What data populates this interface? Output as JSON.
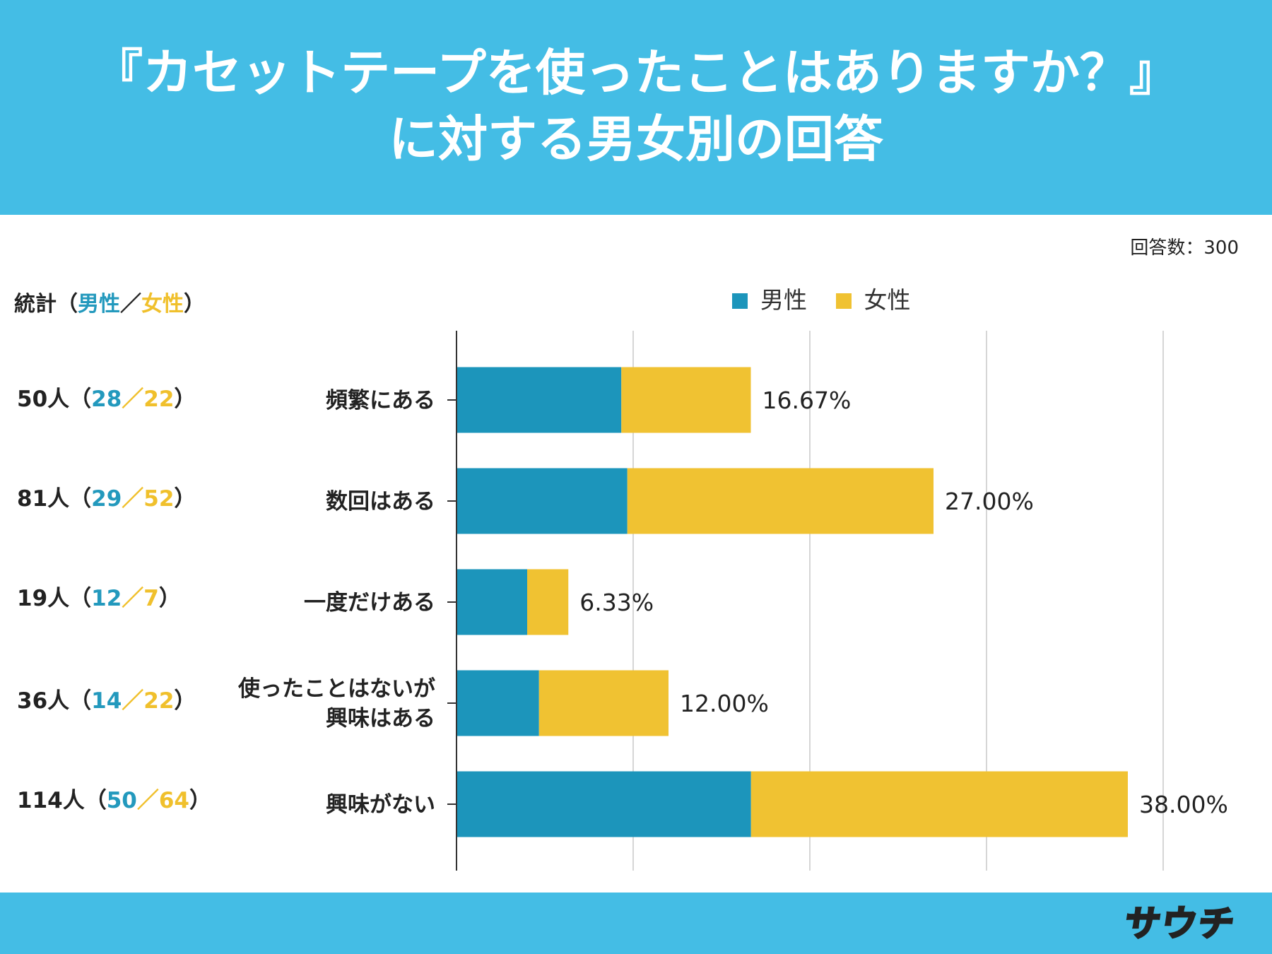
{
  "title_line1": "『カセットテープを使ったことはありますか？』",
  "title_line2": "に対する男女別の回答",
  "response_count": "回答数：300",
  "stats_header": {
    "prefix": "統計（",
    "male": "男性",
    "sep": "／",
    "female": "女性",
    "suffix": "）"
  },
  "legend": {
    "male": "男性",
    "female": "女性"
  },
  "colors": {
    "male": "#1c95bb",
    "female": "#f0c232",
    "header": "#44bde5"
  },
  "stats": [
    {
      "total": "50人",
      "open": "（",
      "male": "28",
      "sep": "／",
      "female": "22",
      "close": "）"
    },
    {
      "total": "81人",
      "open": "（",
      "male": "29",
      "sep": "／",
      "female": "52",
      "close": "）"
    },
    {
      "total": "19人",
      "open": "（",
      "male": "12",
      "sep": "／",
      "female": "7",
      "close": "）"
    },
    {
      "total": "36人",
      "open": "（",
      "male": "14",
      "sep": "／",
      "female": "22",
      "close": "）"
    },
    {
      "total": "114人",
      "open": "（",
      "male": "50",
      "sep": "／",
      "female": "64",
      "close": "）"
    }
  ],
  "logo_text": "サウチ",
  "chart_data": {
    "type": "bar",
    "orientation": "horizontal",
    "stacked": true,
    "title": "『カセットテープを使ったことはありますか？』に対する男女別の回答",
    "categories": [
      [
        "頻繁にある"
      ],
      [
        "数回はある"
      ],
      [
        "一度だけある"
      ],
      [
        "使ったことはないが",
        "興味はある"
      ],
      [
        "興味がない"
      ]
    ],
    "series": [
      {
        "name": "男性",
        "values": [
          9.33,
          9.67,
          4.0,
          4.67,
          16.67
        ]
      },
      {
        "name": "女性",
        "values": [
          7.33,
          17.33,
          2.33,
          7.33,
          21.33
        ]
      }
    ],
    "value_labels": [
      "16.67%",
      "27.00%",
      "6.33%",
      "12.00%",
      "38.00%"
    ],
    "xlim": [
      0,
      50
    ],
    "gridlines": [
      10,
      20,
      30,
      40
    ],
    "legend_position": "top"
  }
}
